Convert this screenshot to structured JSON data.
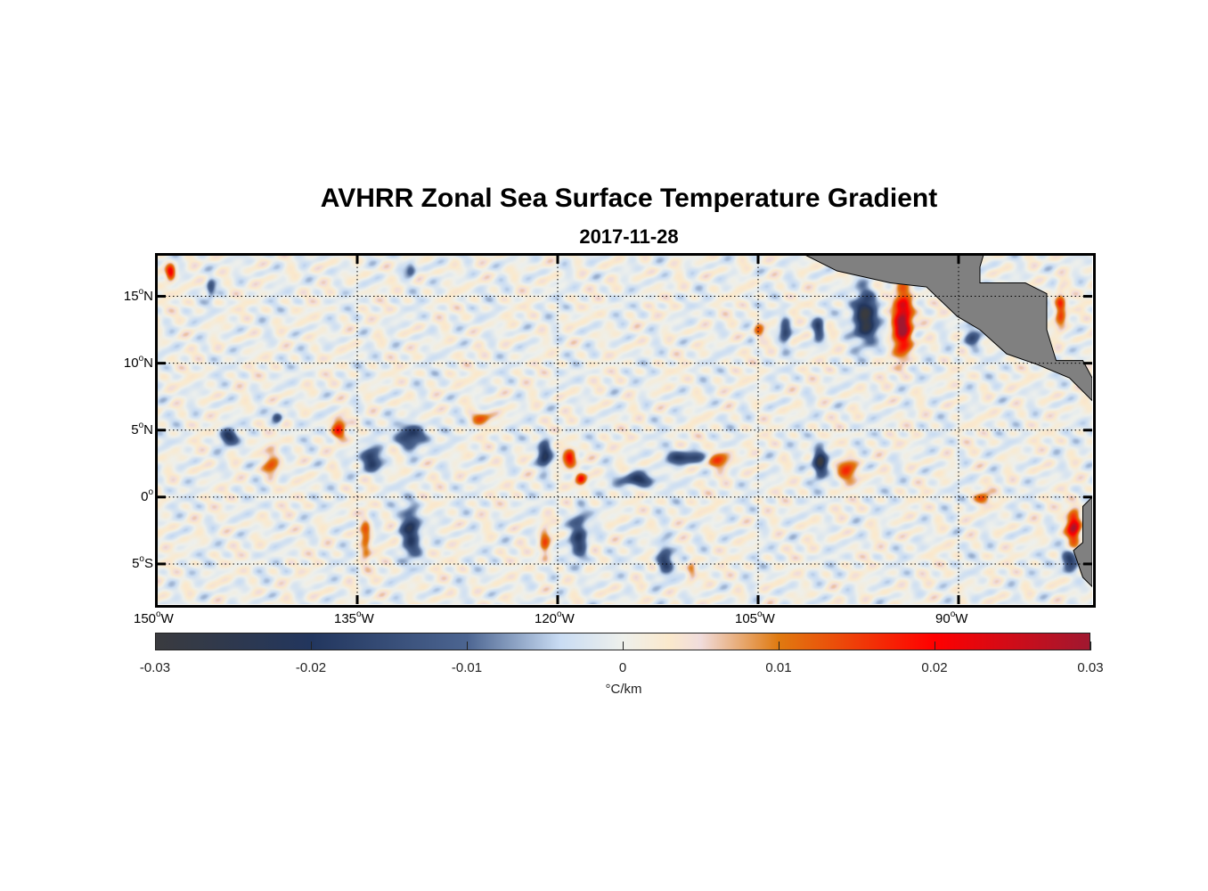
{
  "chart_data": {
    "type": "heatmap",
    "title": "AVHRR Zonal Sea Surface Temperature Gradient",
    "subtitle": "2017-11-28",
    "lon_range": [
      -150,
      -80
    ],
    "lat_range": [
      -8,
      18.1
    ],
    "x_ticks": [
      {
        "num": "150",
        "hemi": "W",
        "value": -150
      },
      {
        "num": "135",
        "hemi": "W",
        "value": -135
      },
      {
        "num": "120",
        "hemi": "W",
        "value": -120
      },
      {
        "num": "105",
        "hemi": "W",
        "value": -105
      },
      {
        "num": "90",
        "hemi": "W",
        "value": -90
      }
    ],
    "y_ticks": [
      {
        "num": "15",
        "hemi": "N",
        "value": 15
      },
      {
        "num": "10",
        "hemi": "N",
        "value": 10
      },
      {
        "num": "5",
        "hemi": "N",
        "value": 5
      },
      {
        "num": "0",
        "hemi": "",
        "value": 0
      },
      {
        "num": "5",
        "hemi": "S",
        "value": -5
      }
    ],
    "grid": true,
    "colorbar": {
      "ticks": [
        "-0.03",
        "-0.02",
        "-0.01",
        "0",
        "0.01",
        "0.02",
        "0.03"
      ],
      "range": [
        -0.03,
        0.03
      ],
      "label": "°C/km",
      "stops": [
        [
          -0.03,
          "#3a3b3f"
        ],
        [
          -0.02,
          "#22365e"
        ],
        [
          -0.01,
          "#4c6591"
        ],
        [
          -0.004,
          "#c9dcf3"
        ],
        [
          0,
          "#eef0ec"
        ],
        [
          0.003,
          "#fbe9cc"
        ],
        [
          0.005,
          "#f0dcdc"
        ],
        [
          0.01,
          "#e07a10"
        ],
        [
          0.02,
          "#ff0000"
        ],
        [
          0.03,
          "#a01830"
        ]
      ]
    },
    "land_color": "#808080",
    "features": [
      {
        "lon": -94.2,
        "lat": 13.2,
        "v": 0.032,
        "sx": 0.7,
        "sy": 2.4
      },
      {
        "lon": -97,
        "lat": 13.5,
        "v": -0.032,
        "sx": 0.8,
        "sy": 1.8
      },
      {
        "lon": -100.4,
        "lat": 2.6,
        "v": -0.028,
        "sx": 0.5,
        "sy": 1.1
      },
      {
        "lon": -119.1,
        "lat": 3,
        "v": 0.02,
        "sx": 0.5,
        "sy": 0.8
      },
      {
        "lon": -118.3,
        "lat": 1.4,
        "v": 0.018,
        "sx": 0.4,
        "sy": 0.5
      },
      {
        "lon": -114,
        "lat": 1.3,
        "v": -0.02,
        "sx": 1.3,
        "sy": 0.5
      },
      {
        "lon": -110.5,
        "lat": 3,
        "v": -0.02,
        "sx": 1.4,
        "sy": 0.5
      },
      {
        "lon": -108,
        "lat": 2.8,
        "v": 0.013,
        "sx": 1,
        "sy": 0.7
      },
      {
        "lon": -131,
        "lat": 4.6,
        "v": -0.022,
        "sx": 1,
        "sy": 0.9
      },
      {
        "lon": -134,
        "lat": 2.8,
        "v": -0.022,
        "sx": 0.7,
        "sy": 0.8
      },
      {
        "lon": -136.4,
        "lat": 5.2,
        "v": 0.016,
        "sx": 0.5,
        "sy": 0.8
      },
      {
        "lon": -125.7,
        "lat": 6,
        "v": 0.012,
        "sx": 0.8,
        "sy": 0.5
      },
      {
        "lon": -121,
        "lat": 3.3,
        "v": -0.022,
        "sx": 0.5,
        "sy": 1
      },
      {
        "lon": -144.7,
        "lat": 4.5,
        "v": -0.02,
        "sx": 0.6,
        "sy": 0.6
      },
      {
        "lon": -141,
        "lat": 6,
        "v": -0.02,
        "sx": 0.4,
        "sy": 0.4
      },
      {
        "lon": -141.4,
        "lat": 2.5,
        "v": 0.012,
        "sx": 0.6,
        "sy": 1
      },
      {
        "lon": -131,
        "lat": -2.5,
        "v": -0.02,
        "sx": 0.7,
        "sy": 1.8
      },
      {
        "lon": -134.4,
        "lat": -3,
        "v": 0.013,
        "sx": 0.4,
        "sy": 1.6
      },
      {
        "lon": -118.4,
        "lat": -3,
        "v": -0.018,
        "sx": 0.6,
        "sy": 2
      },
      {
        "lon": -112,
        "lat": -4.7,
        "v": -0.018,
        "sx": 0.6,
        "sy": 1.2
      },
      {
        "lon": -110,
        "lat": -5.4,
        "v": 0.012,
        "sx": 0.4,
        "sy": 0.8
      },
      {
        "lon": -121,
        "lat": -3.5,
        "v": 0.012,
        "sx": 0.4,
        "sy": 1.5
      },
      {
        "lon": -81.4,
        "lat": -2.2,
        "v": 0.027,
        "sx": 0.5,
        "sy": 1.2
      },
      {
        "lon": -81.7,
        "lat": -4.8,
        "v": -0.02,
        "sx": 0.6,
        "sy": 0.8
      },
      {
        "lon": -82.4,
        "lat": 14.2,
        "v": 0.016,
        "sx": 0.4,
        "sy": 1.5
      },
      {
        "lon": -88.2,
        "lat": 0,
        "v": 0.012,
        "sx": 0.6,
        "sy": 0.5
      },
      {
        "lon": -98.4,
        "lat": 2,
        "v": 0.016,
        "sx": 0.8,
        "sy": 0.8
      },
      {
        "lon": -149,
        "lat": 16.8,
        "v": 0.022,
        "sx": 0.35,
        "sy": 0.6
      },
      {
        "lon": -105,
        "lat": 12.5,
        "v": 0.01,
        "sx": 0.4,
        "sy": 0.8
      },
      {
        "lon": -103,
        "lat": 12.5,
        "v": -0.016,
        "sx": 0.4,
        "sy": 1
      },
      {
        "lon": -100.5,
        "lat": 12.6,
        "v": -0.016,
        "sx": 0.4,
        "sy": 0.9
      },
      {
        "lon": -89,
        "lat": 12,
        "v": -0.012,
        "sx": 0.6,
        "sy": 1
      },
      {
        "lon": -146,
        "lat": 15.6,
        "v": -0.012,
        "sx": 0.3,
        "sy": 0.7
      },
      {
        "lon": -131,
        "lat": 17,
        "v": -0.012,
        "sx": 0.4,
        "sy": 0.6
      }
    ],
    "land": [
      [
        [
          -101.7,
          18.2
        ],
        [
          -99.1,
          16.9
        ],
        [
          -95.1,
          16.0
        ],
        [
          -92.4,
          15.7
        ],
        [
          -90.1,
          13.5
        ],
        [
          -88.4,
          12.5
        ],
        [
          -86.4,
          10.7
        ],
        [
          -84.1,
          9.9
        ],
        [
          -81.7,
          8.9
        ],
        [
          -80,
          7.2
        ],
        [
          -80,
          8.9
        ],
        [
          -80.7,
          10.2
        ],
        [
          -82.7,
          10.2
        ],
        [
          -83.4,
          12.5
        ],
        [
          -83.4,
          15.2
        ],
        [
          -85,
          16
        ],
        [
          -88.4,
          16
        ],
        [
          -88.4,
          17.2
        ],
        [
          -88.1,
          18.2
        ]
      ],
      [
        [
          -80,
          0
        ],
        [
          -80.7,
          -0.7
        ],
        [
          -80.7,
          -3.4
        ],
        [
          -81.4,
          -4
        ],
        [
          -80.7,
          -6
        ],
        [
          -80,
          -6.7
        ]
      ]
    ]
  }
}
